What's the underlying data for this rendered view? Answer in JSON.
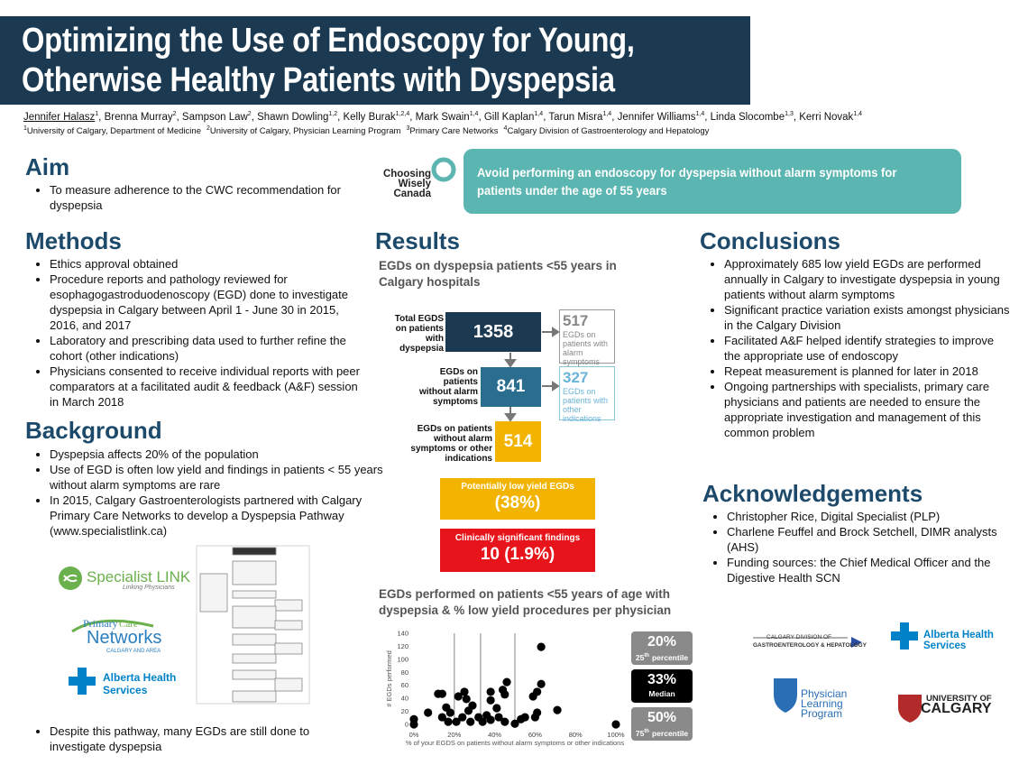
{
  "header": {
    "title_lines": [
      "Optimizing the Use of Endoscopy for Young,",
      "Otherwise Healthy Patients with Dyspepsia"
    ],
    "authors": [
      {
        "name": "Jennifer Halasz",
        "sup": "1"
      },
      {
        "name": "Brenna Murray",
        "sup": "2"
      },
      {
        "name": "Sampson Law",
        "sup": "2"
      },
      {
        "name": "Shawn Dowling",
        "sup": "1,2"
      },
      {
        "name": "Kelly Burak",
        "sup": "1,2,4"
      },
      {
        "name": "Mark Swain",
        "sup": "1,4"
      },
      {
        "name": "Gill Kaplan",
        "sup": "1,4"
      },
      {
        "name": "Tarun Misra",
        "sup": "1,4"
      },
      {
        "name": "Jennifer Williams",
        "sup": "1,4"
      },
      {
        "name": "Linda Slocombe",
        "sup": "1,3"
      },
      {
        "name": "Kerri Novak",
        "sup": "1,4"
      }
    ],
    "author_separator": ", ",
    "affiliations": [
      {
        "num": "1",
        "text": "University of Calgary, Department of Medicine"
      },
      {
        "num": "2",
        "text": "University of Calgary, Physician Learning Program"
      },
      {
        "num": "3",
        "text": "Primary Care Networks"
      },
      {
        "num": "4",
        "text": "Calgary Division of Gastroenterology and Hepatology"
      }
    ]
  },
  "aim": {
    "heading": "Aim",
    "bullets": [
      "To measure adherence to the CWC recommendation for dyspepsia"
    ]
  },
  "methods": {
    "heading": "Methods",
    "bullets": [
      "Ethics approval obtained",
      "Procedure reports and pathology reviewed for esophagogastroduodenoscopy (EGD) done to investigate dyspepsia in Calgary between April 1 - June 30 in 2015, 2016, and 2017",
      "Laboratory and prescribing data used to further refine the cohort (other indications)",
      "Physicians consented to receive individual reports with peer comparators at a facilitated audit & feedback (A&F) session in March 2018"
    ]
  },
  "background": {
    "heading": "Background",
    "bullets": [
      "Dyspepsia affects 20% of the population",
      "Use of EGD is often low yield and findings in patients < 55 years without alarm symptoms are rare",
      "In 2015, Calgary Gastroenterologists partnered with Calgary Primary Care Networks to develop a Dyspepsia Pathway (www.specialistlink.ca)"
    ],
    "closing_bullets": [
      "Despite this pathway, many EGDs are still done to investigate dyspepsia"
    ]
  },
  "logos": {
    "specialist_link": "Specialist LINK",
    "specialist_link_tag": "Linking Physicians",
    "pcn_primary": "Primary",
    "pcn_care": "Care",
    "pcn_networks": "Networks",
    "pcn_area": "CALGARY AND AREA",
    "ahs_1": "Alberta Health",
    "ahs_2": "Services",
    "cdgh_1": "CALGARY DIVISION OF",
    "cdgh_2": "GASTROENTEROLOGY & HEPATOLOGY",
    "plp_1": "Physician",
    "plp_2": "Learning",
    "plp_3": "Program",
    "uofc_1": "UNIVERSITY OF",
    "uofc_2": "CALGARY",
    "cwc_1": "Choosing",
    "cwc_2": "Wisely",
    "cwc_3": "Canada"
  },
  "recommendation": "Avoid performing an endoscopy for dyspepsia without alarm symptoms for patients under the age of 55 years",
  "results": {
    "heading": "Results",
    "flow_title": "EGDs on dyspepsia patients <55 years in Calgary hospitals",
    "flow": {
      "total_label": "Total EGDS on patients with dyspepsia",
      "total": 1358,
      "alarm": 517,
      "alarm_label": "EGDs on patients with alarm symptoms",
      "no_alarm_label": "EGDs on patients without alarm symptoms",
      "no_alarm": 841,
      "other": 327,
      "other_label": "EGDs on patients with other indications",
      "final_label": "EGDs on patients without alarm symptoms or other indications",
      "final": 514,
      "low_yield_label": "Potentially low yield EGDs",
      "low_yield": "(38%)",
      "significant_label": "Clinically significant findings",
      "significant": "10 (1.9%)"
    },
    "chart_title": "EGDs performed on patients <55 years of age with dyspepsia & % low yield procedures per physician",
    "chart_data": {
      "type": "scatter",
      "x_label": "% of your EGDS on patients without alarm symptoms or other indications",
      "y_label": "# EGDs performed",
      "xlim": [
        0,
        100
      ],
      "ylim": [
        0,
        140
      ],
      "xticks": [
        {
          "value": 0,
          "label": "0%"
        },
        {
          "value": 20,
          "label": "20%"
        },
        {
          "value": 40,
          "label": "40%"
        },
        {
          "value": 60,
          "label": "60%"
        },
        {
          "value": 80,
          "label": "80%"
        },
        {
          "value": 100,
          "label": "100%"
        }
      ],
      "yticks": [
        0,
        20,
        40,
        60,
        80,
        100,
        120,
        140
      ],
      "color": "#000000",
      "x": [
        100,
        63,
        63,
        61,
        59,
        71,
        60,
        61,
        46,
        44,
        45,
        38,
        38,
        41,
        36,
        38,
        45,
        53,
        55,
        50,
        25,
        26,
        29,
        27,
        24,
        21,
        17,
        16,
        14,
        12,
        7,
        0,
        0,
        22,
        32,
        28,
        14,
        18,
        34,
        42
      ],
      "y": [
        0,
        119,
        62,
        50,
        43,
        22,
        11,
        18,
        65,
        53,
        46,
        50,
        37,
        25,
        14,
        7,
        4,
        8,
        11,
        1,
        50,
        39,
        29,
        21,
        11,
        4,
        4,
        26,
        47,
        47,
        18,
        8,
        0,
        43,
        11,
        4,
        11,
        18,
        4,
        11
      ],
      "percentiles": [
        {
          "value": 20,
          "label": "20%",
          "rank": "25",
          "rank_suffix": "th",
          "caption": "percentile",
          "color": "#8a8a8a"
        },
        {
          "value": 33,
          "label": "33%",
          "caption": "Median",
          "color": "#000000"
        },
        {
          "value": 50,
          "label": "50%",
          "rank": "75",
          "rank_suffix": "th",
          "caption": "percentile",
          "color": "#8a8a8a"
        }
      ]
    }
  },
  "conclusions": {
    "heading": "Conclusions",
    "bullets": [
      "Approximately 685 low yield EGDs are performed annually in Calgary to investigate dyspepsia in young patients without alarm symptoms",
      "Significant practice variation exists amongst physicians in the Calgary Division",
      "Facilitated A&F helped identify strategies to improve the appropriate use of endoscopy",
      "Repeat measurement is planned for later in 2018",
      "Ongoing partnerships with specialists, primary care physicians and patients are needed to ensure the appropriate investigation and management of this common problem"
    ]
  },
  "acknowledgements": {
    "heading": "Acknowledgements",
    "bullets": [
      "Christopher Rice, Digital Specialist (PLP)",
      "Charlene Feuffel and Brock Setchell, DIMR analysts (AHS)",
      "Funding sources: the Chief Medical Officer and the Digestive Health SCN"
    ]
  }
}
